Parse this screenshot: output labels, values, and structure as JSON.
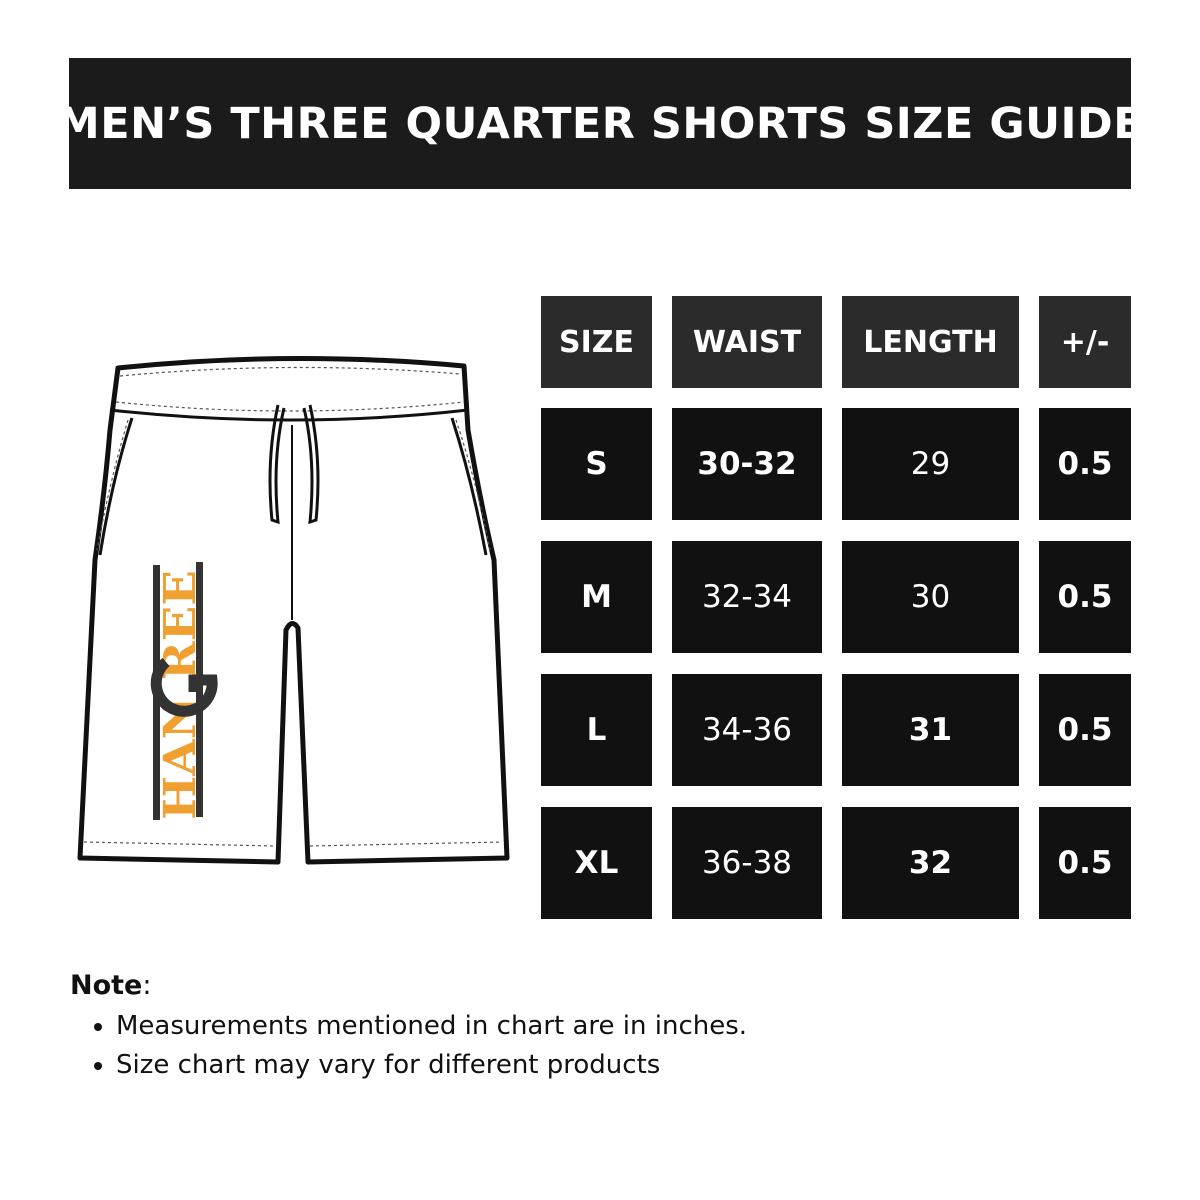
{
  "title": "MEN’S THREE QUARTER SHORTS SIZE GUIDE",
  "colors": {
    "banner": "#1b1b1b",
    "header_cell": "#2b2b2b",
    "body_cell": "#111111",
    "logo_orange": "#f0a030",
    "logo_dark": "#333333"
  },
  "logo": {
    "text": "HANGREE"
  },
  "table": {
    "headers": [
      "SIZE",
      "WAIST",
      "LENGTH",
      "+/-"
    ],
    "rows": [
      {
        "size": "S",
        "waist": "30-32",
        "length": "29",
        "tol": "0.5"
      },
      {
        "size": "M",
        "waist": "32-34",
        "length": "30",
        "tol": "0.5"
      },
      {
        "size": "L",
        "waist": "34-36",
        "length": "31",
        "tol": "0.5"
      },
      {
        "size": "XL",
        "waist": "36-38",
        "length": "32",
        "tol": "0.5"
      }
    ]
  },
  "note": {
    "label": "Note",
    "colon": ":",
    "items": [
      "Measurements mentioned in chart are in inches.",
      "Size chart may vary for different products"
    ]
  }
}
